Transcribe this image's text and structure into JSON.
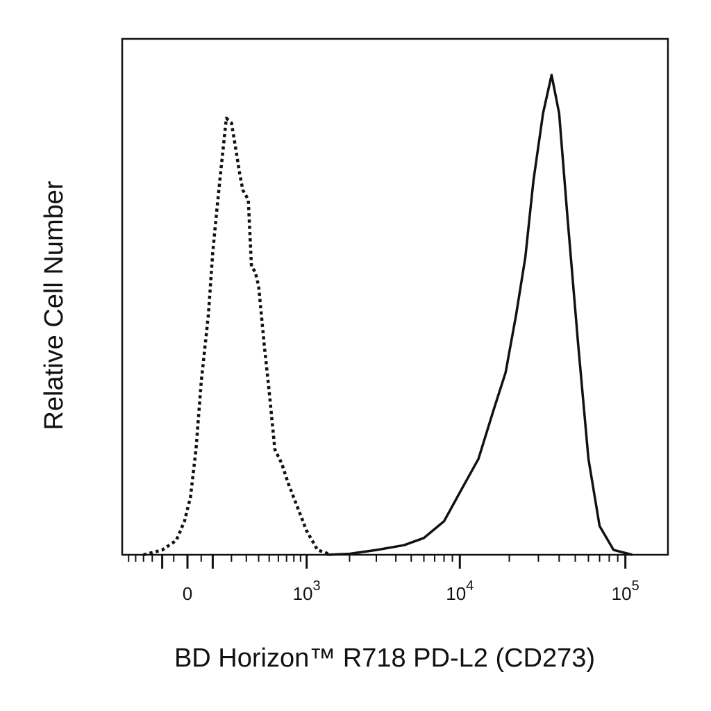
{
  "chart_data": {
    "type": "area",
    "title": "",
    "xlabel": "BD Horizon™ R718 PD-L2 (CD273)",
    "ylabel": "Relative Cell Number",
    "x_scale": "biexponential",
    "xlim": [
      -350,
      180000
    ],
    "ylim": [
      0,
      1
    ],
    "grid": false,
    "legend": "none",
    "x_ticks": [
      {
        "value": 0,
        "base": "0",
        "exp": ""
      },
      {
        "value": 1000,
        "base": "10",
        "exp": "3"
      },
      {
        "value": 10000,
        "base": "10",
        "exp": "4"
      },
      {
        "value": 100000,
        "base": "10",
        "exp": "5"
      }
    ],
    "series": [
      {
        "style": "dotted",
        "color": "#111111",
        "points": [
          [
            -200,
            0.0
          ],
          [
            -100,
            0.01
          ],
          [
            -40,
            0.03
          ],
          [
            -10,
            0.07
          ],
          [
            10,
            0.12
          ],
          [
            30,
            0.22
          ],
          [
            50,
            0.36
          ],
          [
            80,
            0.5
          ],
          [
            100,
            0.63
          ],
          [
            120,
            0.72
          ],
          [
            140,
            0.8
          ],
          [
            170,
            0.91
          ],
          [
            200,
            0.9
          ],
          [
            225,
            0.85
          ],
          [
            255,
            0.79
          ],
          [
            275,
            0.76
          ],
          [
            315,
            0.74
          ],
          [
            340,
            0.6
          ],
          [
            370,
            0.59
          ],
          [
            400,
            0.56
          ],
          [
            450,
            0.44
          ],
          [
            500,
            0.34
          ],
          [
            560,
            0.22
          ],
          [
            640,
            0.19
          ],
          [
            720,
            0.15
          ],
          [
            850,
            0.1
          ],
          [
            1000,
            0.05
          ],
          [
            1200,
            0.01
          ],
          [
            1500,
            0.0
          ]
        ]
      },
      {
        "style": "solid",
        "color": "#111111",
        "points": [
          [
            1400,
            0.0
          ],
          [
            2000,
            0.002
          ],
          [
            3000,
            0.01
          ],
          [
            4500,
            0.02
          ],
          [
            6000,
            0.035
          ],
          [
            8000,
            0.07
          ],
          [
            10000,
            0.13
          ],
          [
            13000,
            0.2
          ],
          [
            16000,
            0.3
          ],
          [
            19000,
            0.38
          ],
          [
            22000,
            0.5
          ],
          [
            25000,
            0.62
          ],
          [
            28000,
            0.78
          ],
          [
            32000,
            0.92
          ],
          [
            36000,
            1.0
          ],
          [
            40000,
            0.92
          ],
          [
            45000,
            0.7
          ],
          [
            52000,
            0.44
          ],
          [
            60000,
            0.2
          ],
          [
            70000,
            0.06
          ],
          [
            85000,
            0.01
          ],
          [
            110000,
            0.0
          ]
        ]
      }
    ]
  }
}
